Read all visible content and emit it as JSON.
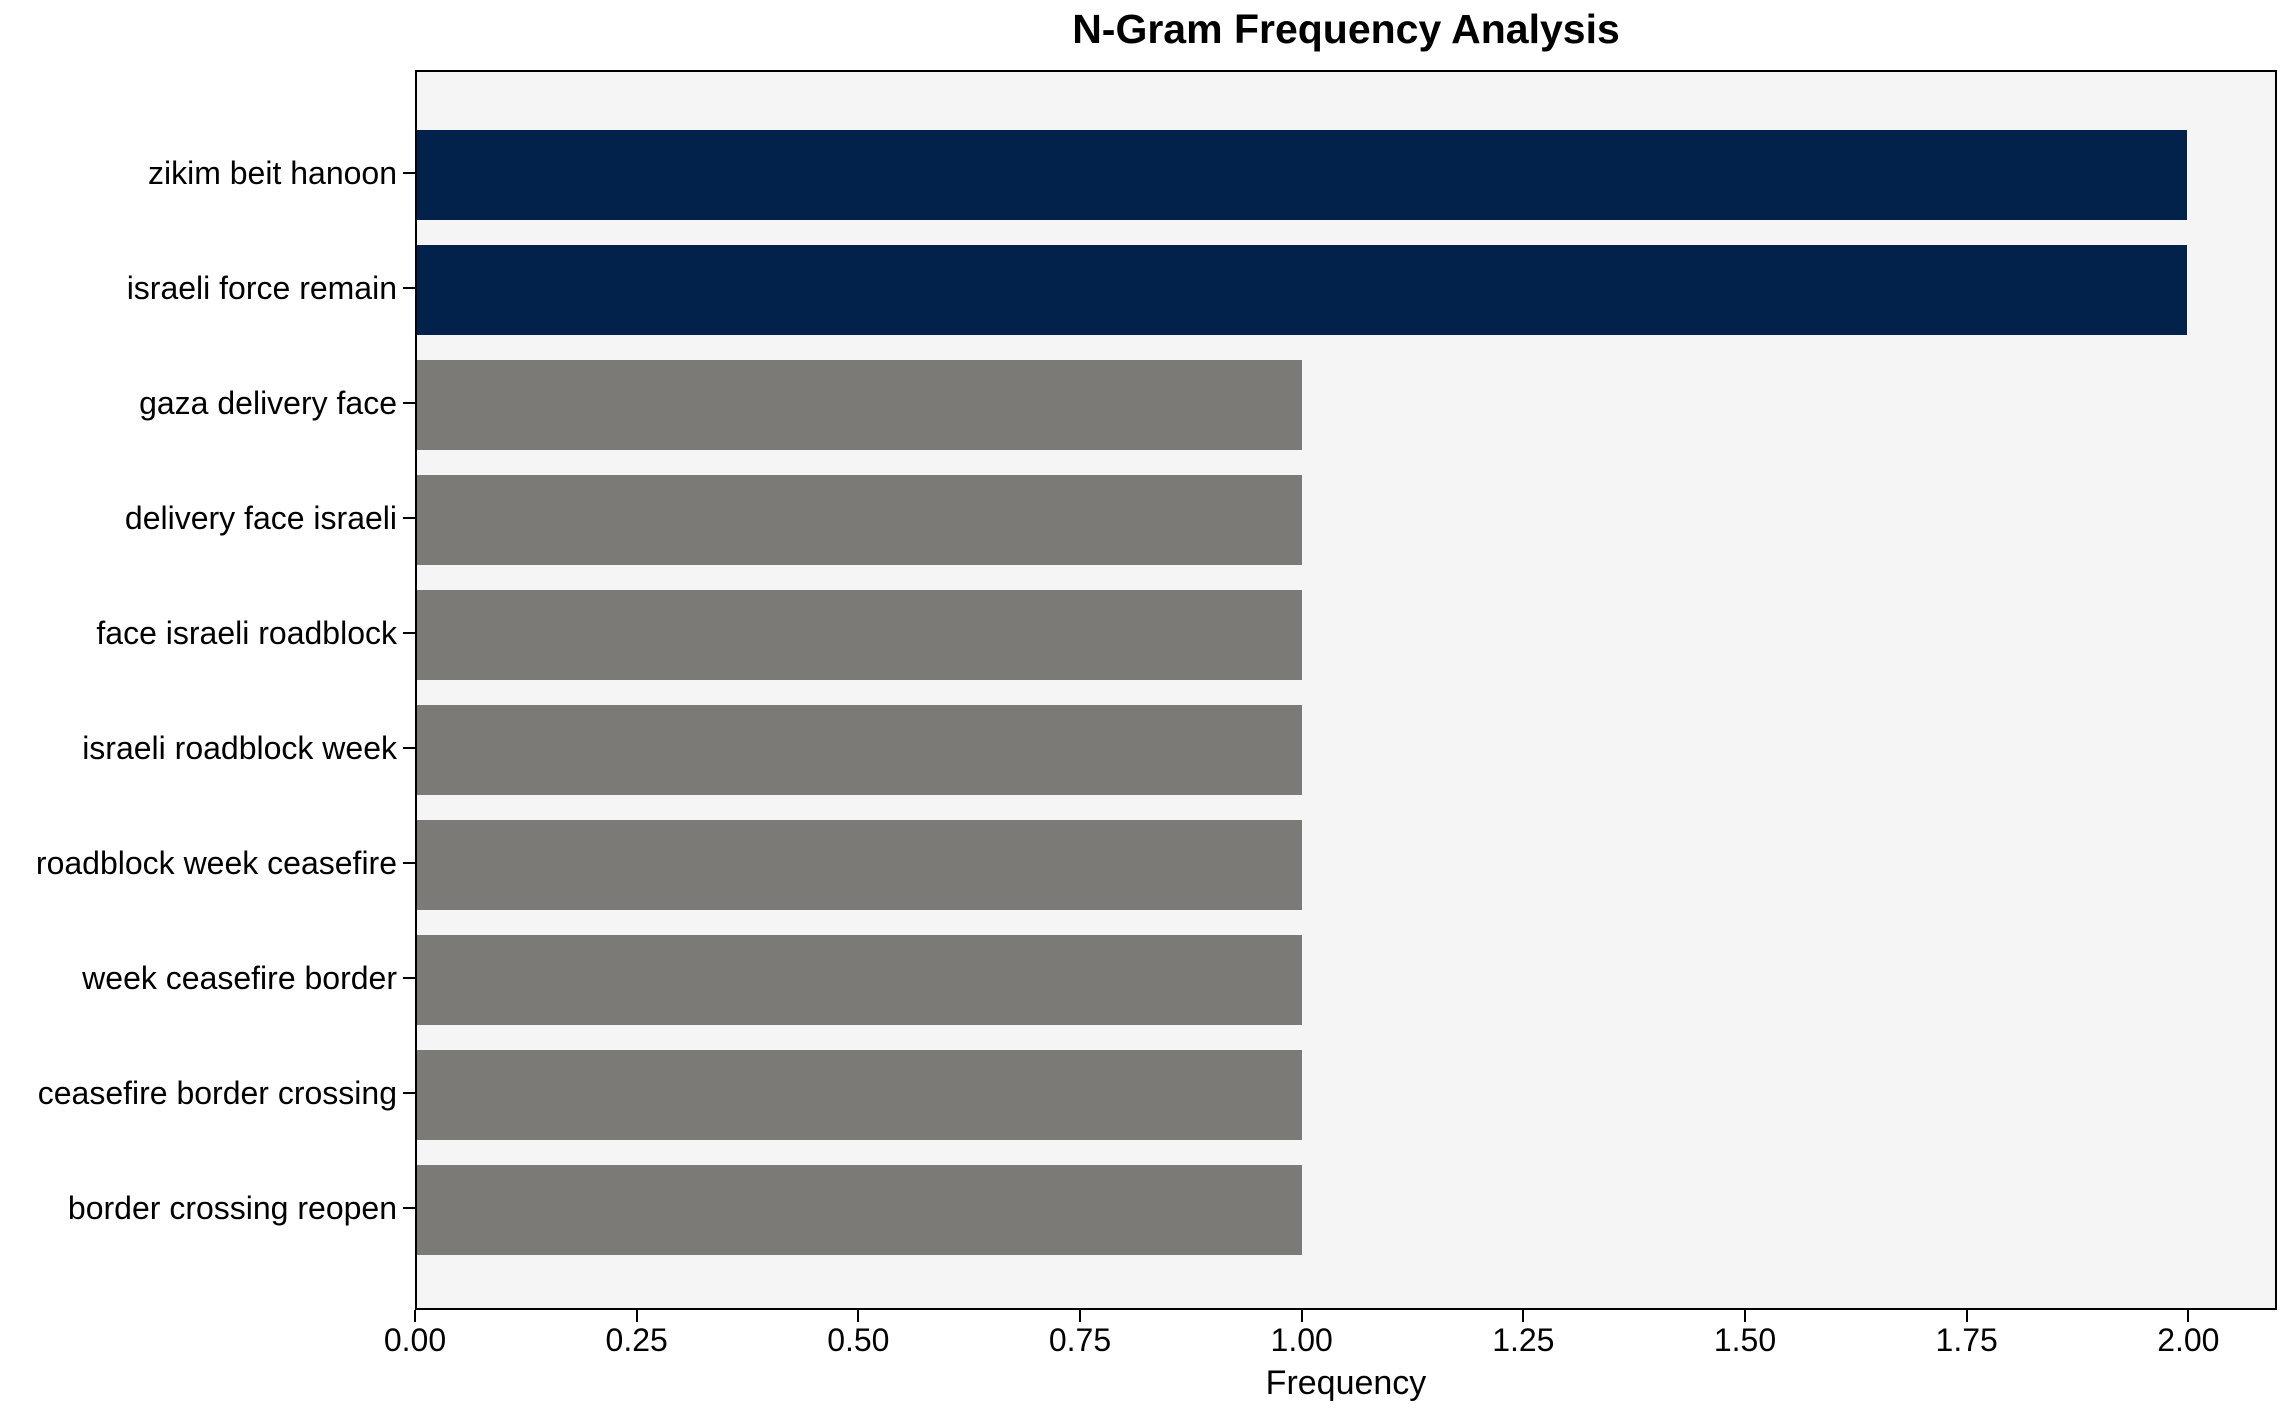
{
  "chart_data": {
    "type": "bar",
    "orientation": "horizontal",
    "title": "N-Gram Frequency Analysis",
    "xlabel": "Frequency",
    "ylabel": "",
    "categories": [
      "zikim beit hanoon",
      "israeli force remain",
      "gaza delivery face",
      "delivery face israeli",
      "face israeli roadblock",
      "israeli roadblock week",
      "roadblock week ceasefire",
      "week ceasefire border",
      "ceasefire border crossing",
      "border crossing reopen"
    ],
    "values": [
      2,
      2,
      1,
      1,
      1,
      1,
      1,
      1,
      1,
      1
    ],
    "bar_colors": [
      "#02224c",
      "#02224c",
      "#7b7a77",
      "#7b7a77",
      "#7b7a77",
      "#7b7a77",
      "#7b7a77",
      "#7b7a77",
      "#7b7a77",
      "#7b7a77"
    ],
    "xlim": [
      0,
      2.1
    ],
    "xticks": [
      "0.00",
      "0.25",
      "0.50",
      "0.75",
      "1.00",
      "1.25",
      "1.50",
      "1.75",
      "2.00"
    ],
    "xtick_values": [
      0,
      0.25,
      0.5,
      0.75,
      1.0,
      1.25,
      1.5,
      1.75,
      2.0
    ],
    "grid": false,
    "legend": null,
    "colors": {
      "highlight_bar": "#02224c",
      "default_bar": "#7b7a77",
      "plot_background": "#f5f5f6",
      "figure_background": "#ffffff",
      "spine": "#000000",
      "text": "#000000"
    }
  }
}
